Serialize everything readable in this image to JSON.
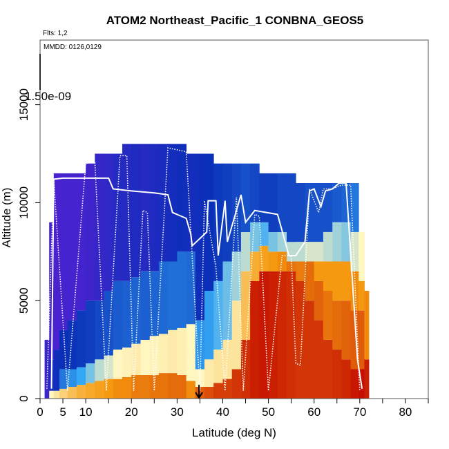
{
  "chart_data": {
    "type": "heatmap",
    "title": "ATOM2 Northeast_Pacific_1 CONBNA_GEOS5",
    "flights_note": "Flts: 1,2",
    "dates_note": "MMDD: 0126,0129",
    "color_scale_max_label": "1.50e-09",
    "xlabel": "Latitude (deg N)",
    "ylabel": "Altitude (m)",
    "xlim": [
      0,
      85
    ],
    "ylim": [
      0,
      18300
    ],
    "x_ticks": [
      0,
      5,
      10,
      20,
      30,
      40,
      50,
      60,
      70,
      80
    ],
    "x_tick_labels": [
      "0",
      "5",
      "10",
      "20",
      "30",
      "40",
      "50",
      "60",
      "70",
      "80"
    ],
    "x_minor_ticks": [
      15,
      25,
      35,
      45,
      55,
      65,
      75,
      85
    ],
    "y_ticks": [
      0,
      5000,
      10000,
      15000
    ],
    "y_tick_labels": [
      "0",
      "5000",
      "10000",
      "15000"
    ],
    "colors": {
      "low": "#5a1fd6",
      "mid_low": "#0a2fb8",
      "mid": "#35a8f5",
      "mid_high": "#fff6c0",
      "high": "#f59a10",
      "max": "#c00000",
      "flight_track": "#ffffff"
    },
    "field_columns": [
      {
        "lat": 1.5,
        "top": 3000,
        "cells": [
          [
            0,
            3000,
            0.06
          ]
        ]
      },
      {
        "lat": 2.5,
        "top": 9000,
        "cells": [
          [
            0,
            400,
            0.55
          ],
          [
            400,
            2000,
            0.12
          ],
          [
            2000,
            9000,
            0.04
          ]
        ]
      },
      {
        "lat": 3.5,
        "top": 11500,
        "cells": [
          [
            0,
            400,
            0.6
          ],
          [
            400,
            2500,
            0.14
          ],
          [
            2500,
            11500,
            0.03
          ]
        ]
      },
      {
        "lat": 5,
        "top": 11500,
        "cells": [
          [
            0,
            500,
            0.65
          ],
          [
            500,
            1500,
            0.3
          ],
          [
            1500,
            3500,
            0.15
          ],
          [
            3500,
            11500,
            0.04
          ]
        ]
      },
      {
        "lat": 7,
        "top": 11500,
        "cells": [
          [
            0,
            600,
            0.7
          ],
          [
            600,
            1500,
            0.35
          ],
          [
            1500,
            4000,
            0.16
          ],
          [
            4000,
            11500,
            0.04
          ]
        ]
      },
      {
        "lat": 9,
        "top": 11500,
        "cells": [
          [
            0,
            700,
            0.74
          ],
          [
            700,
            1600,
            0.4
          ],
          [
            1600,
            4500,
            0.17
          ],
          [
            4500,
            11500,
            0.04
          ]
        ]
      },
      {
        "lat": 11,
        "top": 12000,
        "cells": [
          [
            0,
            800,
            0.76
          ],
          [
            800,
            1800,
            0.45
          ],
          [
            1800,
            5000,
            0.18
          ],
          [
            5000,
            12000,
            0.05
          ]
        ]
      },
      {
        "lat": 13,
        "top": 12500,
        "cells": [
          [
            0,
            900,
            0.78
          ],
          [
            900,
            2000,
            0.5
          ],
          [
            2000,
            5000,
            0.2
          ],
          [
            5000,
            12500,
            0.07
          ]
        ]
      },
      {
        "lat": 15,
        "top": 12500,
        "cells": [
          [
            0,
            1000,
            0.8
          ],
          [
            1000,
            2200,
            0.52
          ],
          [
            2200,
            5500,
            0.22
          ],
          [
            5500,
            12500,
            0.08
          ]
        ]
      },
      {
        "lat": 17,
        "top": 12500,
        "cells": [
          [
            0,
            1000,
            0.82
          ],
          [
            1000,
            2500,
            0.55
          ],
          [
            2500,
            6000,
            0.24
          ],
          [
            6000,
            12500,
            0.1
          ]
        ]
      },
      {
        "lat": 19,
        "top": 13000,
        "cells": [
          [
            0,
            1100,
            0.82
          ],
          [
            1100,
            2600,
            0.56
          ],
          [
            2600,
            6000,
            0.25
          ],
          [
            6000,
            13000,
            0.1
          ]
        ]
      },
      {
        "lat": 21,
        "top": 13000,
        "cells": [
          [
            0,
            1200,
            0.84
          ],
          [
            1200,
            2800,
            0.58
          ],
          [
            2800,
            6200,
            0.26
          ],
          [
            6200,
            13000,
            0.11
          ]
        ]
      },
      {
        "lat": 23,
        "top": 13000,
        "cells": [
          [
            0,
            1200,
            0.84
          ],
          [
            1200,
            3000,
            0.55
          ],
          [
            3000,
            6500,
            0.25
          ],
          [
            6500,
            13000,
            0.1
          ]
        ]
      },
      {
        "lat": 25,
        "top": 13000,
        "cells": [
          [
            0,
            1200,
            0.85
          ],
          [
            1200,
            3200,
            0.56
          ],
          [
            3200,
            6500,
            0.26
          ],
          [
            6500,
            13000,
            0.11
          ]
        ]
      },
      {
        "lat": 27,
        "top": 13000,
        "cells": [
          [
            0,
            1300,
            0.85
          ],
          [
            1300,
            3300,
            0.57
          ],
          [
            3300,
            7000,
            0.27
          ],
          [
            7000,
            13000,
            0.12
          ]
        ]
      },
      {
        "lat": 29,
        "top": 13000,
        "cells": [
          [
            0,
            1300,
            0.86
          ],
          [
            1300,
            3500,
            0.58
          ],
          [
            3500,
            7000,
            0.28
          ],
          [
            7000,
            13000,
            0.13
          ]
        ]
      },
      {
        "lat": 31,
        "top": 13000,
        "cells": [
          [
            0,
            1200,
            0.86
          ],
          [
            1200,
            3600,
            0.57
          ],
          [
            3600,
            7500,
            0.28
          ],
          [
            7500,
            13000,
            0.14
          ]
        ]
      },
      {
        "lat": 33,
        "top": 12500,
        "cells": [
          [
            0,
            900,
            0.82
          ],
          [
            900,
            3800,
            0.55
          ],
          [
            3800,
            7500,
            0.27
          ],
          [
            7500,
            12500,
            0.13
          ]
        ]
      },
      {
        "lat": 35,
        "top": 12500,
        "cells": [
          [
            0,
            600,
            0.88
          ],
          [
            600,
            1500,
            0.55
          ],
          [
            1500,
            4000,
            0.36
          ],
          [
            4000,
            12500,
            0.14
          ]
        ]
      },
      {
        "lat": 37,
        "top": 12500,
        "cells": [
          [
            0,
            600,
            0.9
          ],
          [
            600,
            2000,
            0.58
          ],
          [
            2000,
            5500,
            0.38
          ],
          [
            5500,
            12500,
            0.15
          ]
        ]
      },
      {
        "lat": 39,
        "top": 12000,
        "cells": [
          [
            0,
            800,
            0.92
          ],
          [
            800,
            2500,
            0.6
          ],
          [
            2500,
            6000,
            0.42
          ],
          [
            6000,
            12000,
            0.17
          ]
        ]
      },
      {
        "lat": 41,
        "top": 12000,
        "cells": [
          [
            0,
            1000,
            0.92
          ],
          [
            1000,
            3000,
            0.6
          ],
          [
            3000,
            7000,
            0.44
          ],
          [
            7000,
            12000,
            0.18
          ]
        ]
      },
      {
        "lat": 43,
        "top": 12000,
        "cells": [
          [
            0,
            1500,
            0.93
          ],
          [
            1500,
            5000,
            0.6
          ],
          [
            5000,
            7500,
            0.48
          ],
          [
            7500,
            12000,
            0.2
          ]
        ]
      },
      {
        "lat": 45,
        "top": 12000,
        "cells": [
          [
            0,
            3000,
            0.94
          ],
          [
            3000,
            6500,
            0.7
          ],
          [
            6500,
            8500,
            0.5
          ],
          [
            8500,
            12000,
            0.22
          ]
        ]
      },
      {
        "lat": 47,
        "top": 12000,
        "cells": [
          [
            0,
            6000,
            0.96
          ],
          [
            6000,
            7500,
            0.75
          ],
          [
            7500,
            9000,
            0.45
          ],
          [
            9000,
            12000,
            0.2
          ]
        ]
      },
      {
        "lat": 49,
        "top": 11500,
        "cells": [
          [
            0,
            6500,
            0.97
          ],
          [
            6500,
            7800,
            0.78
          ],
          [
            7800,
            9000,
            0.42
          ],
          [
            9000,
            11500,
            0.18
          ]
        ]
      },
      {
        "lat": 51,
        "top": 11500,
        "cells": [
          [
            0,
            6500,
            0.96
          ],
          [
            6500,
            7500,
            0.8
          ],
          [
            7500,
            8500,
            0.45
          ],
          [
            8500,
            11500,
            0.18
          ]
        ]
      },
      {
        "lat": 53,
        "top": 11500,
        "cells": [
          [
            0,
            6500,
            0.95
          ],
          [
            6500,
            7500,
            0.82
          ],
          [
            7500,
            8500,
            0.48
          ],
          [
            8500,
            11500,
            0.2
          ]
        ]
      },
      {
        "lat": 55,
        "top": 11500,
        "cells": [
          [
            0,
            6500,
            0.94
          ],
          [
            6500,
            7000,
            0.85
          ],
          [
            7000,
            8000,
            0.5
          ],
          [
            8000,
            11500,
            0.2
          ]
        ]
      },
      {
        "lat": 57,
        "top": 11000,
        "cells": [
          [
            0,
            6000,
            0.93
          ],
          [
            6000,
            7000,
            0.84
          ],
          [
            7000,
            8000,
            0.5
          ],
          [
            8000,
            11000,
            0.2
          ]
        ]
      },
      {
        "lat": 59,
        "top": 11000,
        "cells": [
          [
            0,
            5000,
            0.93
          ],
          [
            5000,
            7000,
            0.86
          ],
          [
            7000,
            8000,
            0.52
          ],
          [
            8000,
            11000,
            0.22
          ]
        ]
      },
      {
        "lat": 61,
        "top": 11000,
        "cells": [
          [
            0,
            4000,
            0.93
          ],
          [
            4000,
            6000,
            0.87
          ],
          [
            6000,
            7000,
            0.8
          ],
          [
            7000,
            8000,
            0.52
          ],
          [
            8000,
            11000,
            0.22
          ]
        ]
      },
      {
        "lat": 63,
        "top": 11000,
        "cells": [
          [
            0,
            3000,
            0.93
          ],
          [
            3000,
            5500,
            0.85
          ],
          [
            5500,
            7000,
            0.8
          ],
          [
            7000,
            8500,
            0.5
          ],
          [
            8500,
            11000,
            0.22
          ]
        ]
      },
      {
        "lat": 65,
        "top": 11000,
        "cells": [
          [
            0,
            2500,
            0.94
          ],
          [
            2500,
            5000,
            0.86
          ],
          [
            5000,
            7000,
            0.8
          ],
          [
            7000,
            9000,
            0.48
          ],
          [
            9000,
            11000,
            0.24
          ]
        ]
      },
      {
        "lat": 67,
        "top": 11000,
        "cells": [
          [
            0,
            2000,
            0.95
          ],
          [
            2000,
            5000,
            0.87
          ],
          [
            5000,
            7000,
            0.8
          ],
          [
            7000,
            9000,
            0.46
          ],
          [
            9000,
            11000,
            0.26
          ]
        ]
      },
      {
        "lat": 69,
        "top": 11000,
        "cells": [
          [
            0,
            1500,
            0.97
          ],
          [
            1500,
            4500,
            0.88
          ],
          [
            4500,
            6500,
            0.82
          ],
          [
            6500,
            8500,
            0.52
          ],
          [
            8500,
            11000,
            0.3
          ]
        ]
      },
      {
        "lat": 70.5,
        "top": 8500,
        "cells": [
          [
            0,
            1500,
            0.98
          ],
          [
            1500,
            4500,
            0.88
          ],
          [
            4500,
            6000,
            0.8
          ],
          [
            6000,
            8500,
            0.55
          ]
        ]
      },
      {
        "lat": 71.5,
        "top": 5500,
        "cells": [
          [
            0,
            2000,
            0.96
          ],
          [
            2000,
            5500,
            0.82
          ]
        ]
      }
    ],
    "flight_track_solid": [
      [
        2.5,
        500
      ],
      [
        3,
        11200
      ],
      [
        5,
        11250
      ],
      [
        9,
        11250
      ],
      [
        12,
        11250
      ],
      [
        15,
        11250
      ],
      [
        16,
        10700
      ],
      [
        20,
        10600
      ],
      [
        25,
        10500
      ],
      [
        28,
        10400
      ],
      [
        29,
        9500
      ],
      [
        32,
        9200
      ],
      [
        33,
        8400
      ],
      [
        33.3,
        7800
      ],
      [
        36.5,
        8500
      ],
      [
        36.8,
        10100
      ],
      [
        38.5,
        10100
      ],
      [
        39,
        7300
      ],
      [
        40.5,
        10100
      ],
      [
        41,
        8000
      ],
      [
        44,
        10400
      ],
      [
        45,
        9000
      ],
      [
        47,
        9600
      ],
      [
        52,
        9400
      ],
      [
        54.5,
        7300
      ],
      [
        56,
        7300
      ],
      [
        58,
        8000
      ],
      [
        59,
        10600
      ],
      [
        60,
        10700
      ],
      [
        61.5,
        9800
      ],
      [
        62.5,
        10600
      ],
      [
        64,
        10700
      ],
      [
        65.5,
        11000
      ],
      [
        67,
        11000
      ],
      [
        69.5,
        2000
      ],
      [
        70.5,
        500
      ]
    ],
    "flight_track_dotted": [
      [
        1.5,
        500
      ],
      [
        3,
        11200
      ],
      [
        6,
        400
      ],
      [
        10,
        12000
      ],
      [
        12,
        12100
      ],
      [
        14.5,
        400
      ],
      [
        17.5,
        12400
      ],
      [
        19,
        12400
      ],
      [
        20.5,
        400
      ],
      [
        22.5,
        9600
      ],
      [
        23.5,
        9500
      ],
      [
        25,
        400
      ],
      [
        28,
        12800
      ],
      [
        32,
        12600
      ],
      [
        35,
        400
      ],
      [
        36,
        10100
      ],
      [
        38.5,
        6700
      ],
      [
        40.5,
        400
      ],
      [
        43,
        10300
      ],
      [
        44.5,
        400
      ],
      [
        47,
        9400
      ],
      [
        48,
        9300
      ],
      [
        50,
        400
      ],
      [
        53,
        7300
      ],
      [
        55,
        7300
      ],
      [
        56,
        1800
      ],
      [
        57,
        1700
      ],
      [
        59,
        10700
      ],
      [
        61,
        9500
      ],
      [
        62,
        10700
      ],
      [
        64,
        10700
      ],
      [
        66,
        10900
      ],
      [
        68,
        10900
      ],
      [
        70,
        400
      ]
    ],
    "marker_lat": 34.8,
    "marker_alt_top": 700
  }
}
